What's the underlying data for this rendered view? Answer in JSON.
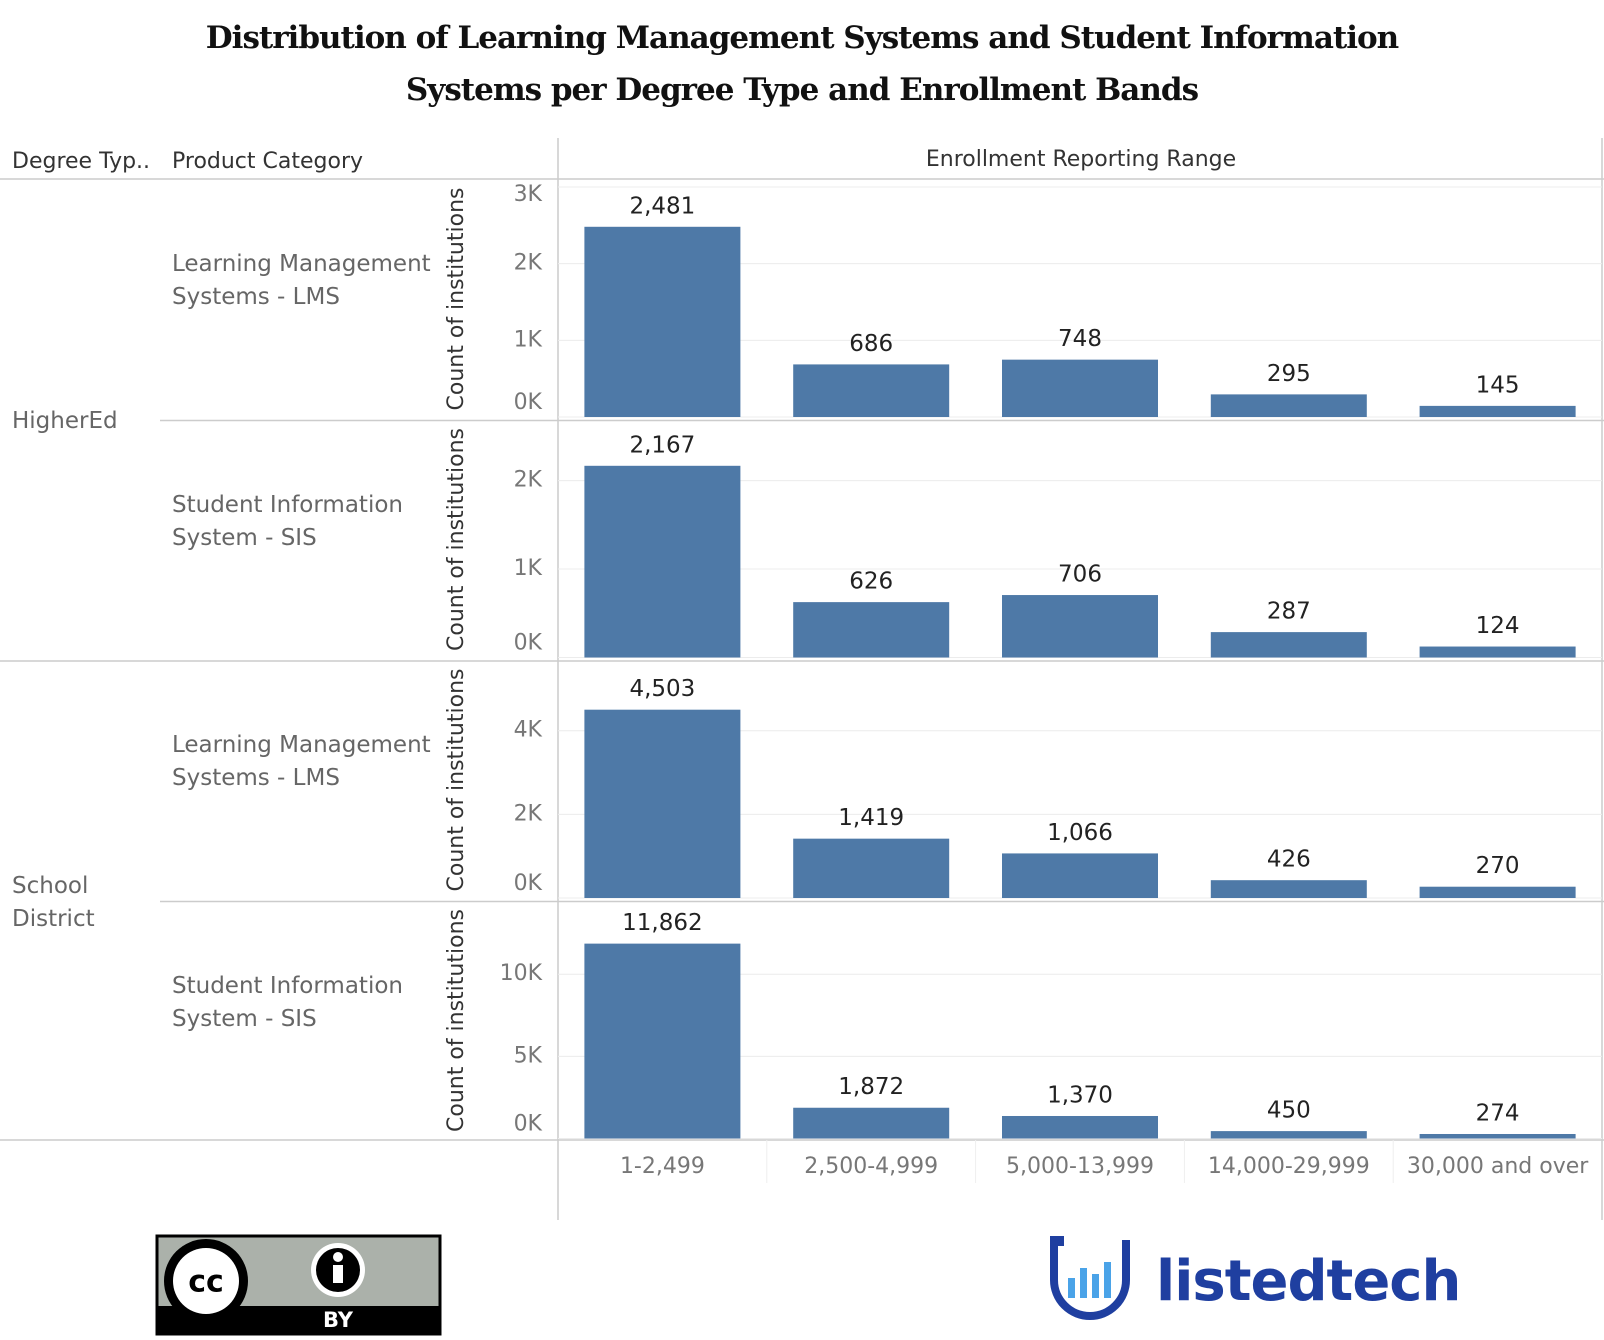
{
  "chart_data": {
    "type": "bar",
    "title": "Distribution of Learning Management Systems and Student Information Systems per Degree Type and Enrollment Bands",
    "headers": {
      "degree": "Degree Typ..",
      "product": "Product Category",
      "columns": "Enrollment Reporting Range"
    },
    "y_label": "Count of institutions",
    "color": "#4e79a7",
    "grid": true,
    "categories": [
      "1-2,499",
      "2,500-4,999",
      "5,000-13,999",
      "14,000-29,999",
      "30,000 and over"
    ],
    "row_groups": [
      {
        "label": "HigherEd",
        "panels": [
          {
            "label": "Learning Management Systems - LMS",
            "values": [
              2481,
              686,
              748,
              295,
              145
            ],
            "value_labels": [
              "2,481",
              "686",
              "748",
              "295",
              "145"
            ],
            "ylim": [
              0,
              3000
            ],
            "yticks": [
              {
                "value": 0,
                "label": "0K"
              },
              {
                "value": 1000,
                "label": "1K"
              },
              {
                "value": 2000,
                "label": "2K"
              },
              {
                "value": 3000,
                "label": "3K"
              }
            ]
          },
          {
            "label": "Student Information System - SIS",
            "values": [
              2167,
              626,
              706,
              287,
              124
            ],
            "value_labels": [
              "2,167",
              "626",
              "706",
              "287",
              "124"
            ],
            "ylim": [
              0,
              2600
            ],
            "yticks": [
              {
                "value": 0,
                "label": "0K"
              },
              {
                "value": 1000,
                "label": "1K"
              },
              {
                "value": 2000,
                "label": "2K"
              }
            ]
          }
        ]
      },
      {
        "label": "School District",
        "panels": [
          {
            "label": "Learning Management Systems - LMS",
            "values": [
              4503,
              1419,
              1066,
              426,
              270
            ],
            "value_labels": [
              "4,503",
              "1,419",
              "1,066",
              "426",
              "270"
            ],
            "ylim": [
              0,
              5500
            ],
            "yticks": [
              {
                "value": 0,
                "label": "0K"
              },
              {
                "value": 2000,
                "label": "2K"
              },
              {
                "value": 4000,
                "label": "4K"
              }
            ]
          },
          {
            "label": "Student Information System - SIS",
            "values": [
              11862,
              1872,
              1370,
              450,
              274
            ],
            "value_labels": [
              "11,862",
              "1,872",
              "1,370",
              "450",
              "274"
            ],
            "ylim": [
              0,
              14000
            ],
            "yticks": [
              {
                "value": 0,
                "label": "0K"
              },
              {
                "value": 5000,
                "label": "5K"
              },
              {
                "value": 10000,
                "label": "10K"
              }
            ]
          }
        ]
      }
    ]
  },
  "footer": {
    "license_icon": "cc",
    "license": "BY",
    "brand": "listedtech"
  }
}
